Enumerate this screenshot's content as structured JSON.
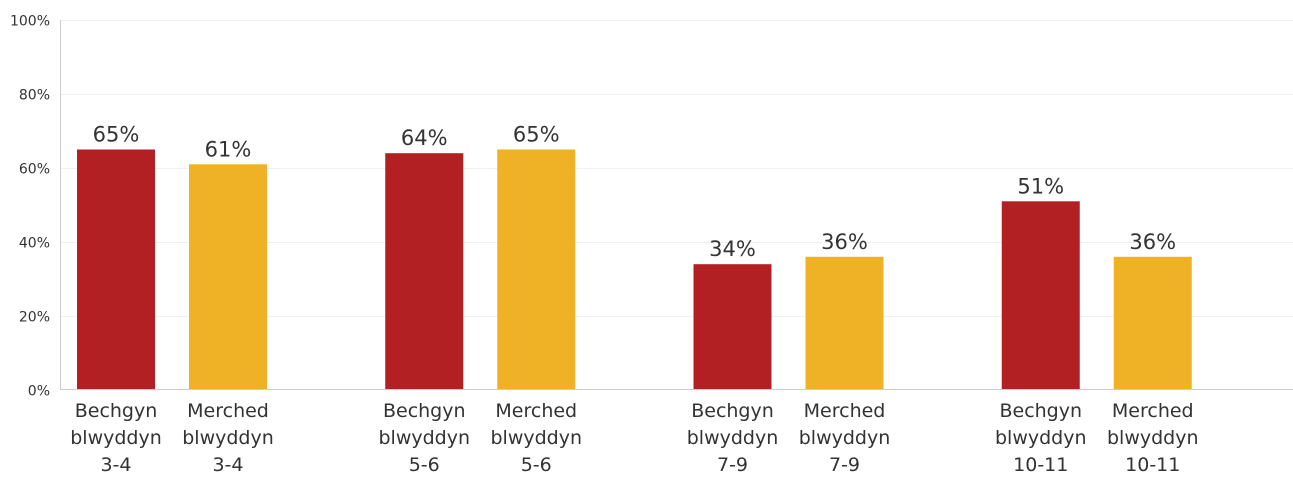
{
  "chart_data": {
    "type": "bar",
    "yticks": [
      "0%",
      "20%",
      "40%",
      "60%",
      "80%",
      "100%"
    ],
    "ylim": [
      0,
      100
    ],
    "grid": true,
    "colors": {
      "boys": "#b22024",
      "girls": "#efb226"
    },
    "groups": [
      {
        "bars": [
          {
            "label": [
              "Bechgyn",
              "blwyddyn",
              "3-4"
            ],
            "value": 65,
            "value_label": "65%",
            "color_key": "boys"
          },
          {
            "label": [
              "Merched",
              "blwyddyn",
              "3-4"
            ],
            "value": 61,
            "value_label": "61%",
            "color_key": "girls"
          }
        ]
      },
      {
        "bars": [
          {
            "label": [
              "Bechgyn",
              "blwyddyn",
              "5-6"
            ],
            "value": 64,
            "value_label": "64%",
            "color_key": "boys"
          },
          {
            "label": [
              "Merched",
              "blwyddyn",
              "5-6"
            ],
            "value": 65,
            "value_label": "65%",
            "color_key": "girls"
          }
        ]
      },
      {
        "bars": [
          {
            "label": [
              "Bechgyn",
              "blwyddyn",
              "7-9"
            ],
            "value": 34,
            "value_label": "34%",
            "color_key": "boys"
          },
          {
            "label": [
              "Merched",
              "blwyddyn",
              "7-9"
            ],
            "value": 36,
            "value_label": "36%",
            "color_key": "girls"
          }
        ]
      },
      {
        "bars": [
          {
            "label": [
              "Bechgyn",
              "blwyddyn",
              "10-11"
            ],
            "value": 51,
            "value_label": "51%",
            "color_key": "boys"
          },
          {
            "label": [
              "Merched",
              "blwyddyn",
              "10-11"
            ],
            "value": 36,
            "value_label": "36%",
            "color_key": "girls"
          }
        ]
      }
    ]
  }
}
